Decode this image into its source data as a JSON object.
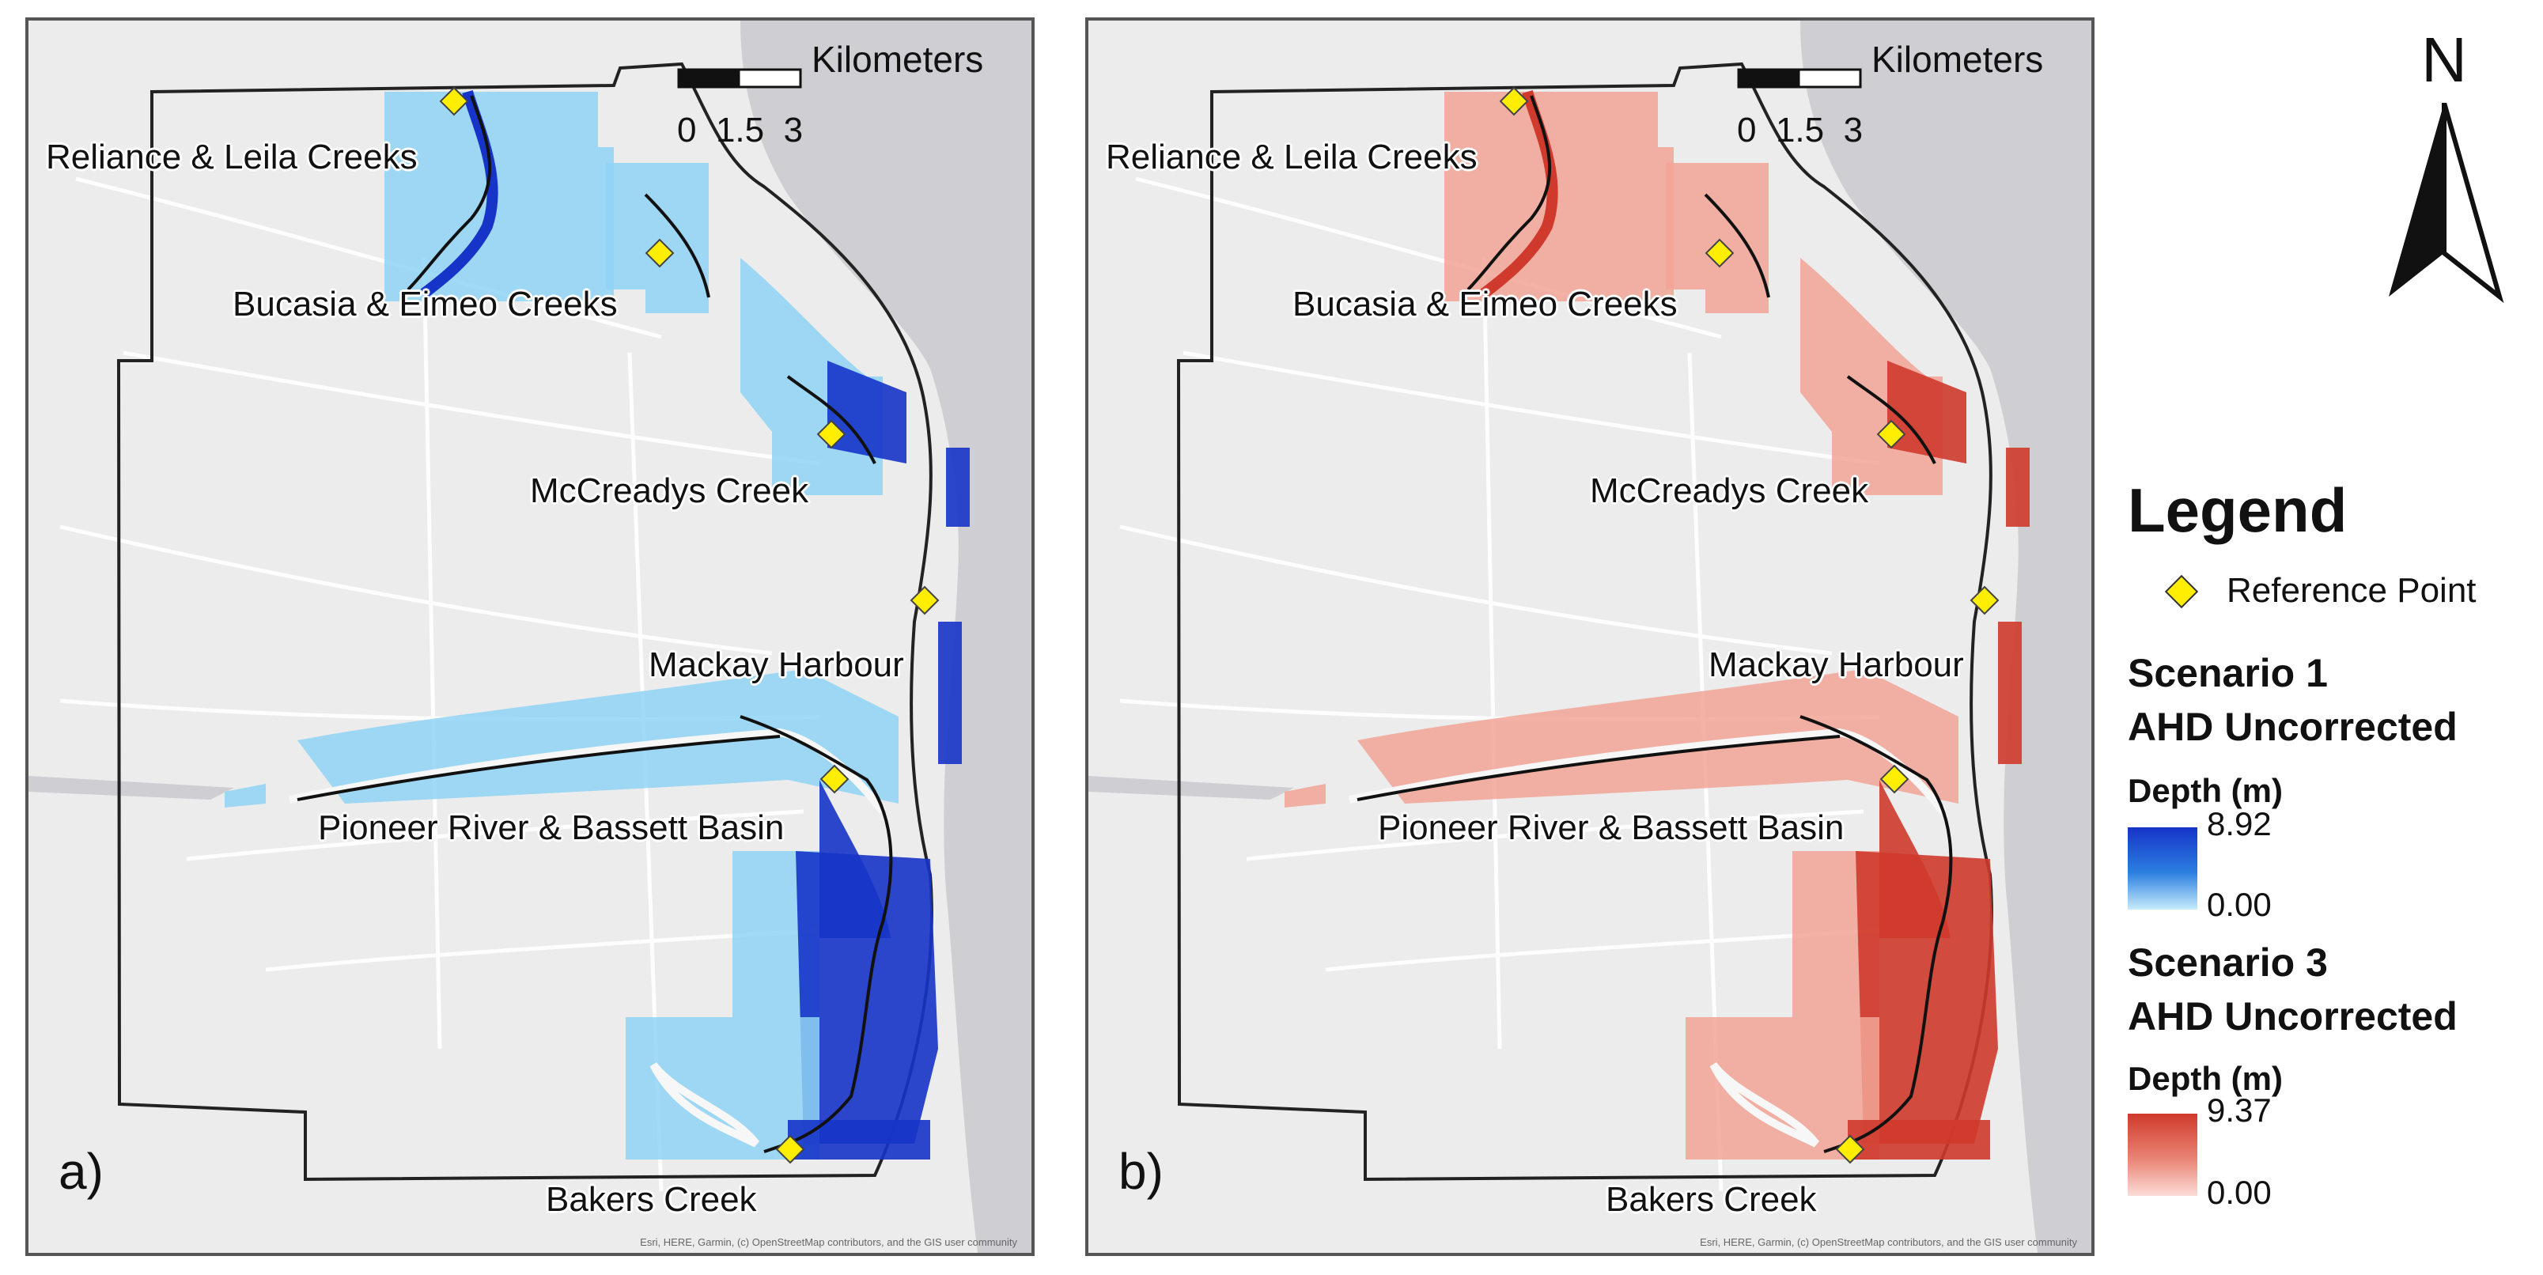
{
  "panels": [
    {
      "letter": "a)",
      "labels": {
        "reliance": "Reliance & Leila Creeks",
        "bucasia": "Bucasia & Eimeo Creeks",
        "mccreadys": "McCreadys Creek",
        "harbour": "Mackay Harbour",
        "pioneer": "Pioneer River & Bassett Basin",
        "bakers": "Bakers Creek"
      },
      "depth_color_dark": "#1634c8",
      "depth_color_light": "#8fd3f5"
    },
    {
      "letter": "b)",
      "labels": {
        "reliance": "Reliance & Leila Creeks",
        "bucasia": "Bucasia & Eimeo Creeks",
        "mccreadys": "McCreadys Creek",
        "harbour": "Mackay Harbour",
        "pioneer": "Pioneer River & Bassett Basin",
        "bakers": "Bakers Creek"
      },
      "depth_color_dark": "#cf3a2c",
      "depth_color_light": "#f2a597"
    }
  ],
  "scale_bar": {
    "units": "Kilometers",
    "ticks": [
      "0",
      "1.5",
      "3"
    ]
  },
  "attribution": "Esri, HERE, Garmin, (c) OpenStreetMap contributors, and the GIS user community",
  "north_arrow": {
    "letter": "N"
  },
  "legend": {
    "title": "Legend",
    "reference_point_label": "Reference Point",
    "scenario1": {
      "title_line1": "Scenario 1",
      "title_line2": "AHD Uncorrected",
      "depth_label": "Depth (m)",
      "max": "8.92",
      "min": "0.00",
      "color": "#1634c8"
    },
    "scenario3": {
      "title_line1": "Scenario 3",
      "title_line2": "AHD Uncorrected",
      "depth_label": "Depth (m)",
      "max": "9.37",
      "min": "0.00",
      "color": "#cf3a2c"
    }
  },
  "colors": {
    "reference_point": "#ffee00",
    "sea": "#cfcfd3",
    "land": "#ececec",
    "boundary": "#222222"
  }
}
